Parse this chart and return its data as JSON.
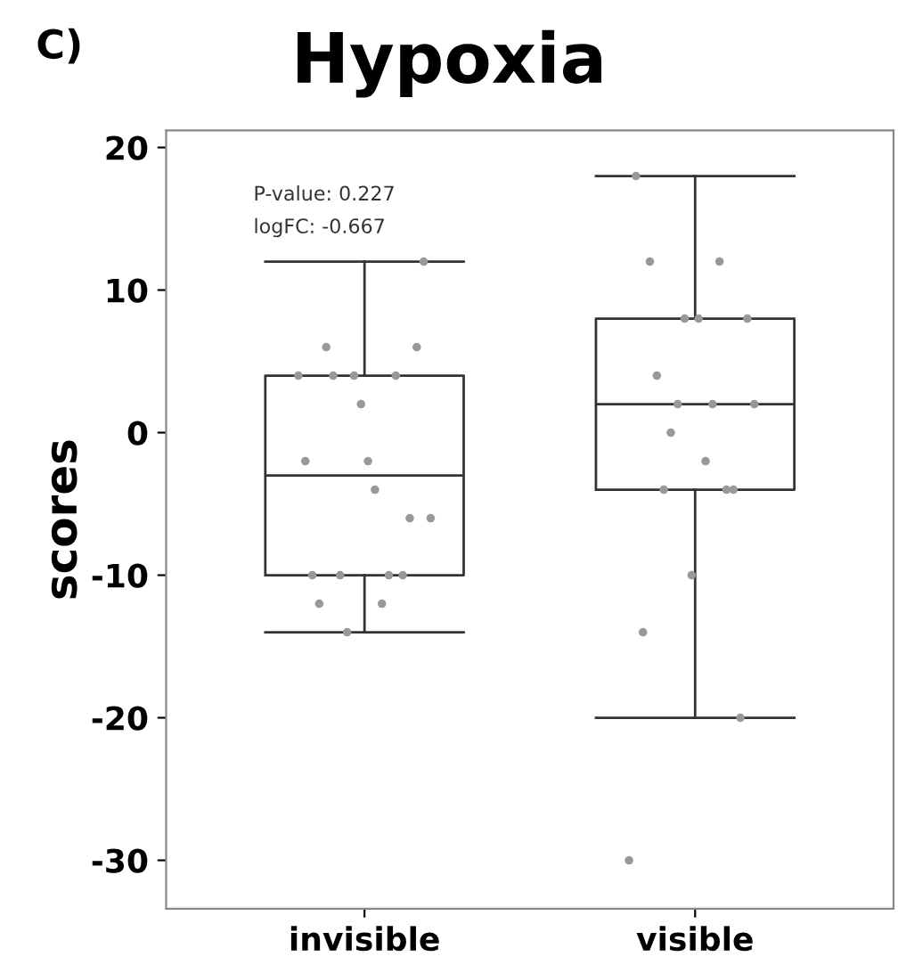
{
  "chart_data": {
    "type": "box",
    "title": "Hypoxia",
    "ylabel": "scores",
    "categories": [
      "invisible",
      "visible"
    ],
    "annotations": [
      "C)",
      "P-value: 0.227",
      "logFC: -0.667"
    ],
    "ylim": [
      -33.4,
      21.2
    ],
    "yticks": [
      -30,
      -20,
      -10,
      0,
      10,
      20
    ],
    "grid": false,
    "legend": false,
    "boxes": [
      {
        "low": -14,
        "q1": -10,
        "median": -3,
        "q3": 4,
        "high": 12
      },
      {
        "low": -20,
        "q1": -4,
        "median": 2,
        "q3": 8,
        "high": 18
      }
    ],
    "series": [
      {
        "type": "scatter",
        "color": "#999999",
        "marker": "circle",
        "values": [
          4,
          -30
        ]
      },
      {
        "type": "scatter",
        "color": "#999999",
        "marker": "circle",
        "values": [
          -2,
          18
        ]
      },
      {
        "type": "scatter",
        "color": "#999999",
        "marker": "circle",
        "values": [
          -10,
          -14
        ]
      },
      {
        "type": "scatter",
        "color": "#999999",
        "marker": "circle",
        "values": [
          -12,
          12
        ]
      },
      {
        "type": "scatter",
        "color": "#999999",
        "marker": "circle",
        "values": [
          6,
          4
        ]
      },
      {
        "type": "scatter",
        "color": "#999999",
        "marker": "circle",
        "values": [
          4,
          -4
        ]
      },
      {
        "type": "scatter",
        "color": "#999999",
        "marker": "circle",
        "values": [
          -10,
          0
        ]
      },
      {
        "type": "scatter",
        "color": "#999999",
        "marker": "circle",
        "values": [
          -14,
          2
        ]
      },
      {
        "type": "scatter",
        "color": "#999999",
        "marker": "circle",
        "values": [
          4,
          8
        ]
      },
      {
        "type": "scatter",
        "color": "#999999",
        "marker": "circle",
        "values": [
          2,
          -10
        ]
      },
      {
        "type": "scatter",
        "color": "#999999",
        "marker": "circle",
        "values": [
          -2,
          8
        ]
      },
      {
        "type": "scatter",
        "color": "#999999",
        "marker": "circle",
        "values": [
          -4,
          -2
        ]
      },
      {
        "type": "scatter",
        "color": "#999999",
        "marker": "circle",
        "values": [
          -12,
          2
        ]
      },
      {
        "type": "scatter",
        "color": "#999999",
        "marker": "circle",
        "values": [
          -10,
          12
        ]
      },
      {
        "type": "scatter",
        "color": "#999999",
        "marker": "circle",
        "values": [
          4,
          -4
        ]
      },
      {
        "type": "scatter",
        "color": "#999999",
        "marker": "circle",
        "values": [
          -10,
          -4
        ]
      },
      {
        "type": "scatter",
        "color": "#999999",
        "marker": "circle",
        "values": [
          -6,
          -20
        ]
      },
      {
        "type": "scatter",
        "color": "#999999",
        "marker": "circle",
        "values": [
          6,
          8
        ]
      },
      {
        "type": "scatter",
        "color": "#999999",
        "marker": "circle",
        "values": [
          12,
          2
        ]
      },
      {
        "type": "scatter",
        "color": "#999999",
        "marker": "circle",
        "values": [
          -6,
          null
        ]
      }
    ]
  }
}
